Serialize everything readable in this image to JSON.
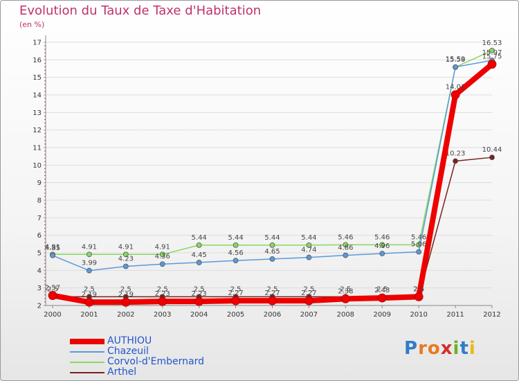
{
  "chart_data": {
    "type": "line",
    "title": "Evolution du Taux de Taxe d'Habitation",
    "ylabel": "(en %)",
    "xlabel": "",
    "ylim": [
      2,
      17
    ],
    "yticks": [
      "2",
      "3",
      "4",
      "5",
      "6",
      "7",
      "8",
      "9",
      "10",
      "11",
      "12",
      "13",
      "14",
      "15",
      "16",
      "17"
    ],
    "categories": [
      "2000",
      "2001",
      "2002",
      "2003",
      "2004",
      "2005",
      "2006",
      "2007",
      "2008",
      "2009",
      "2010",
      "2011",
      "2012"
    ],
    "series": [
      {
        "name": "Corvol-d'Embernard",
        "color": "#88d860",
        "values": [
          4.91,
          4.91,
          4.91,
          4.91,
          5.44,
          5.44,
          5.44,
          5.44,
          5.46,
          5.46,
          5.46,
          15.58,
          16.53
        ],
        "labels": [
          "4.91",
          "4.91",
          "4.91",
          "4.91",
          "5.44",
          "5.44",
          "5.44",
          "5.44",
          "5.46",
          "5.46",
          "5.46",
          "15.58",
          "16.53"
        ]
      },
      {
        "name": "Chazeuil",
        "color": "#5a9ad8",
        "values": [
          4.85,
          3.99,
          4.23,
          4.36,
          4.45,
          4.56,
          4.65,
          4.74,
          4.86,
          4.96,
          5.06,
          15.59,
          15.97
        ],
        "labels": [
          "4.85",
          "3.99",
          "4.23",
          "4.36",
          "4.45",
          "4.56",
          "4.65",
          "4.74",
          "4.86",
          "4.96",
          "5.06",
          "15.59",
          "15.97"
        ]
      },
      {
        "name": "Arthel",
        "color": "#7a2020",
        "values": [
          2.5,
          2.5,
          2.5,
          2.5,
          2.5,
          2.5,
          2.5,
          2.5,
          2.5,
          2.5,
          2.5,
          10.23,
          10.44
        ],
        "labels": [
          "2.5",
          "2.5",
          "2.5",
          "2.5",
          "2.5",
          "2.5",
          "2.5",
          "2.5",
          "2.5",
          "2.5",
          "2.5",
          "10.23",
          "10.44"
        ]
      },
      {
        "name": "AUTHIOU",
        "color": "#ee0000",
        "values": [
          2.57,
          2.19,
          2.19,
          2.23,
          2.23,
          2.27,
          2.27,
          2.27,
          2.38,
          2.43,
          2.5,
          14.01,
          15.75
        ],
        "labels": [
          "2.57",
          "2.19",
          "2.19",
          "2.23",
          "2.23",
          "2.27",
          "2.27",
          "2.27",
          "2.38",
          "2.43",
          "2.5",
          "14.01",
          "15.75"
        ]
      }
    ]
  },
  "legend": {
    "items": [
      {
        "label": "AUTHIOU",
        "color": "#ee0000"
      },
      {
        "label": "Chazeuil",
        "color": "#5a9ad8"
      },
      {
        "label": "Corvol-d'Embernard",
        "color": "#88d860"
      },
      {
        "label": "Arthel",
        "color": "#7a2020"
      }
    ]
  },
  "logo": {
    "letters": [
      "P",
      "r",
      "o",
      "x",
      "i",
      "t",
      "i"
    ],
    "colors": [
      "#2f7dc8",
      "#e87a1e",
      "#e87a1e",
      "#d22d2d",
      "#6bb02f",
      "#2f7dc8",
      "#e8b81e"
    ]
  }
}
